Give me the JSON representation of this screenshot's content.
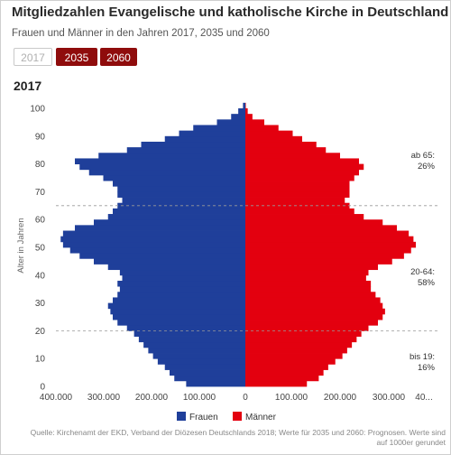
{
  "header": {
    "title": "Mitgliedzahlen Evangelische und katholische Kirche in Deutschland",
    "subtitle": "Frauen und Männer in den Jahren 2017, 2035 und 2060"
  },
  "year_buttons": [
    {
      "label": "2017",
      "state": "inactive"
    },
    {
      "label": "2035",
      "state": "active"
    },
    {
      "label": "2060",
      "state": "active"
    }
  ],
  "selected_year": "2017",
  "source": {
    "line1": "Quelle: Kirchenamt der EKD, Verband der Diözesen Deutschlands 2018; Werte für 2035 und 2060: Prognosen. Werte sind",
    "line2": "auf 1000er gerundet"
  },
  "colors": {
    "women": "#1f3f9a",
    "men": "#e3000f",
    "button_active": "#8f0c0c"
  },
  "chart_data": {
    "type": "bar",
    "orientation": "horizontal-population-pyramid",
    "ylabel": "Alter in Jahren",
    "ylim": [
      0,
      100
    ],
    "y_ticks": [
      "0",
      "10",
      "20",
      "30",
      "40",
      "50",
      "60",
      "70",
      "80",
      "90",
      "100"
    ],
    "x_tick_labels": [
      "400.000",
      "300.000",
      "200.000",
      "100.000",
      "0",
      "100.000",
      "200.000",
      "300.000",
      "40..."
    ],
    "xlim": [
      -400000,
      400000
    ],
    "series": [
      {
        "name": "Frauen",
        "side": "left",
        "ages": [
          0,
          2,
          4,
          6,
          8,
          10,
          12,
          14,
          16,
          18,
          20,
          22,
          24,
          26,
          28,
          30,
          32,
          34,
          36,
          38,
          40,
          42,
          44,
          46,
          48,
          50,
          52,
          54,
          56,
          58,
          60,
          62,
          64,
          66,
          68,
          70,
          72,
          74,
          76,
          78,
          80,
          82,
          84,
          86,
          88,
          90,
          92,
          94,
          96,
          98,
          100
        ],
        "values": [
          125000,
          150000,
          160000,
          170000,
          185000,
          195000,
          205000,
          215000,
          225000,
          235000,
          250000,
          270000,
          280000,
          285000,
          290000,
          280000,
          270000,
          265000,
          270000,
          260000,
          265000,
          290000,
          320000,
          350000,
          370000,
          385000,
          390000,
          385000,
          360000,
          320000,
          290000,
          280000,
          270000,
          260000,
          270000,
          270000,
          280000,
          300000,
          330000,
          350000,
          360000,
          310000,
          250000,
          220000,
          170000,
          140000,
          110000,
          60000,
          30000,
          15000,
          5000
        ]
      },
      {
        "name": "Männer",
        "side": "right",
        "ages": [
          0,
          2,
          4,
          6,
          8,
          10,
          12,
          14,
          16,
          18,
          20,
          22,
          24,
          26,
          28,
          30,
          32,
          34,
          36,
          38,
          40,
          42,
          44,
          46,
          48,
          50,
          52,
          54,
          56,
          58,
          60,
          62,
          64,
          66,
          68,
          70,
          72,
          74,
          76,
          78,
          80,
          82,
          84,
          86,
          88,
          90,
          92,
          94,
          96,
          98,
          100
        ],
        "values": [
          130000,
          155000,
          165000,
          175000,
          190000,
          205000,
          215000,
          225000,
          235000,
          245000,
          260000,
          280000,
          290000,
          295000,
          290000,
          285000,
          275000,
          265000,
          265000,
          255000,
          260000,
          280000,
          310000,
          335000,
          350000,
          360000,
          355000,
          345000,
          320000,
          290000,
          250000,
          230000,
          220000,
          210000,
          220000,
          220000,
          220000,
          230000,
          240000,
          250000,
          240000,
          200000,
          170000,
          150000,
          120000,
          100000,
          70000,
          40000,
          15000,
          5000,
          1000
        ]
      }
    ],
    "reference_lines_at_age": [
      20,
      65
    ],
    "annotations": [
      {
        "group": "ab 65:",
        "share": "26%"
      },
      {
        "group": "20-64:",
        "share": "58%"
      },
      {
        "group": "bis 19:",
        "share": "16%"
      }
    ],
    "legend": {
      "position": "bottom",
      "entries": [
        "Frauen",
        "Männer"
      ]
    },
    "grid": false
  }
}
